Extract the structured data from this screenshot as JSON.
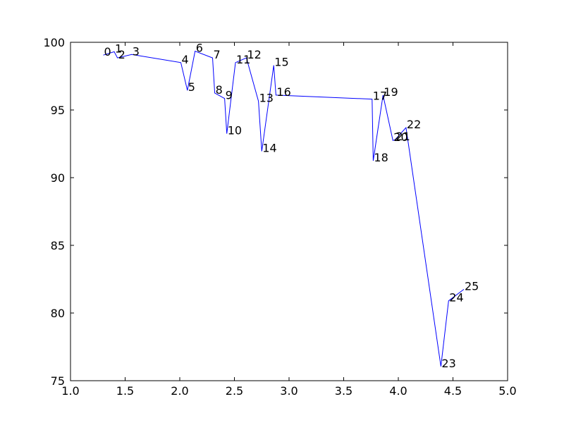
{
  "chart_data": {
    "type": "line",
    "title": "",
    "xlabel": "",
    "ylabel": "",
    "xlim": [
      1.0,
      5.0
    ],
    "ylim": [
      75,
      100
    ],
    "xticks": [
      1.0,
      1.5,
      2.0,
      2.5,
      3.0,
      3.5,
      4.0,
      4.5,
      5.0
    ],
    "xtick_labels": [
      "1.0",
      "1.5",
      "2.0",
      "2.5",
      "3.0",
      "3.5",
      "4.0",
      "4.5",
      "5.0"
    ],
    "yticks": [
      75,
      80,
      85,
      90,
      95,
      100
    ],
    "ytick_labels": [
      "75",
      "80",
      "85",
      "90",
      "95",
      "100"
    ],
    "grid": false,
    "line_color": "#0000ff",
    "series": [
      {
        "points": [
          {
            "label": "0",
            "x": 1.3,
            "y": 99.05
          },
          {
            "label": "1",
            "x": 1.4,
            "y": 99.3
          },
          {
            "label": "2",
            "x": 1.43,
            "y": 98.85
          },
          {
            "label": "3",
            "x": 1.56,
            "y": 99.1
          },
          {
            "label": "4",
            "x": 2.01,
            "y": 98.5
          },
          {
            "label": "5",
            "x": 2.07,
            "y": 96.45
          },
          {
            "label": "6",
            "x": 2.14,
            "y": 99.35
          },
          {
            "label": "7",
            "x": 2.3,
            "y": 98.85
          },
          {
            "label": "8",
            "x": 2.32,
            "y": 96.25
          },
          {
            "label": "9",
            "x": 2.41,
            "y": 95.85
          },
          {
            "label": "10",
            "x": 2.43,
            "y": 93.25
          },
          {
            "label": "11",
            "x": 2.51,
            "y": 98.5
          },
          {
            "label": "12",
            "x": 2.61,
            "y": 98.85
          },
          {
            "label": "13",
            "x": 2.72,
            "y": 95.65
          },
          {
            "label": "14",
            "x": 2.75,
            "y": 91.95
          },
          {
            "label": "15",
            "x": 2.86,
            "y": 98.3
          },
          {
            "label": "16",
            "x": 2.88,
            "y": 96.1
          },
          {
            "label": "17",
            "x": 3.76,
            "y": 95.8
          },
          {
            "label": "18",
            "x": 3.77,
            "y": 91.25
          },
          {
            "label": "19",
            "x": 3.86,
            "y": 96.1
          },
          {
            "label": "20",
            "x": 3.95,
            "y": 92.75
          },
          {
            "label": "21",
            "x": 3.97,
            "y": 92.8
          },
          {
            "label": "22",
            "x": 4.07,
            "y": 93.7
          },
          {
            "label": "23",
            "x": 4.39,
            "y": 76.05
          },
          {
            "label": "24",
            "x": 4.46,
            "y": 80.9
          },
          {
            "label": "25",
            "x": 4.6,
            "y": 81.75
          }
        ]
      }
    ]
  }
}
